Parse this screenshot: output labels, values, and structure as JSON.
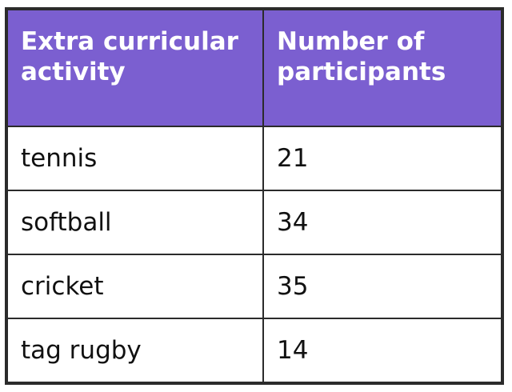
{
  "chart_data": {
    "type": "table",
    "columns": [
      "Extra curricular activity",
      "Number of participants"
    ],
    "rows": [
      {
        "activity": "tennis",
        "participants": "21"
      },
      {
        "activity": "softball",
        "participants": "34"
      },
      {
        "activity": "cricket",
        "participants": "35"
      },
      {
        "activity": "tag rugby",
        "participants": "14"
      }
    ]
  },
  "colors": {
    "header_bg": "#7b5fd0",
    "header_text": "#ffffff",
    "border": "#2b2b2b"
  }
}
